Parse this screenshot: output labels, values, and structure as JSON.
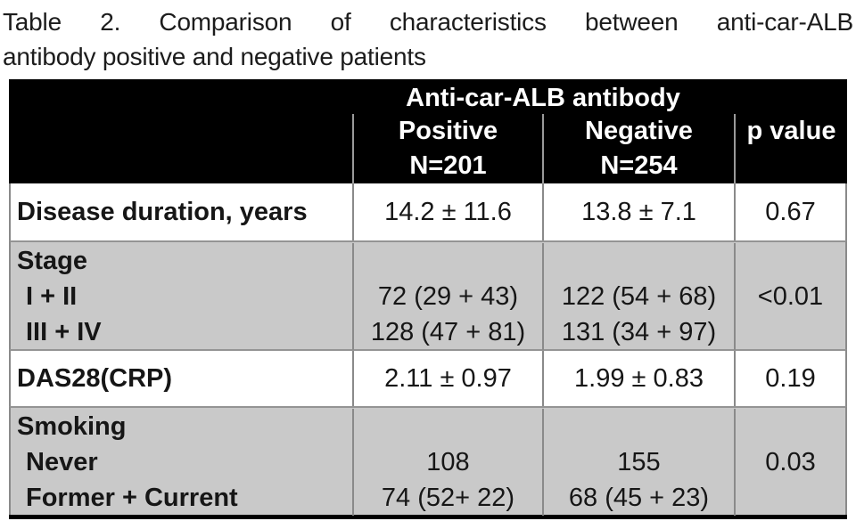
{
  "title": {
    "line1": "Table 2. Comparison of characteristics between anti-car-ALB",
    "line2": "antibody positive and negative patients"
  },
  "table": {
    "span_header": "Anti-car-ALB antibody",
    "columns": {
      "positive": {
        "label": "Positive",
        "n": "N=201"
      },
      "negative": {
        "label": "Negative",
        "n": "N=254"
      },
      "p": {
        "label": "p value"
      }
    },
    "rows": [
      {
        "label": [
          "Disease duration, years"
        ],
        "positive": [
          "14.2 ± 11.6"
        ],
        "negative": [
          "13.8 ± 7.1"
        ],
        "p": [
          "0.67"
        ]
      },
      {
        "label": [
          "Stage",
          "I + II",
          "III + IV"
        ],
        "positive": [
          "",
          "72 (29 + 43)",
          "128 (47 + 81)"
        ],
        "negative": [
          "",
          "122 (54 + 68)",
          "131 (34 + 97)"
        ],
        "p": [
          "",
          "<0.01",
          ""
        ]
      },
      {
        "label": [
          "DAS28(CRP)"
        ],
        "positive": [
          "2.11 ± 0.97"
        ],
        "negative": [
          "1.99 ± 0.83"
        ],
        "p": [
          "0.19"
        ]
      },
      {
        "label": [
          "Smoking",
          "Never",
          "Former + Current"
        ],
        "positive": [
          "",
          "108",
          "74 (52+ 22)"
        ],
        "negative": [
          "",
          "155",
          "68 (45 + 23)"
        ],
        "p": [
          "",
          "0.03",
          ""
        ]
      }
    ]
  },
  "colors": {
    "header_bg": "#000000",
    "header_text": "#ffffff",
    "shaded_row_bg": "#c9c9c9",
    "grid_line": "#8a8a8a",
    "bottom_border": "#000000"
  }
}
